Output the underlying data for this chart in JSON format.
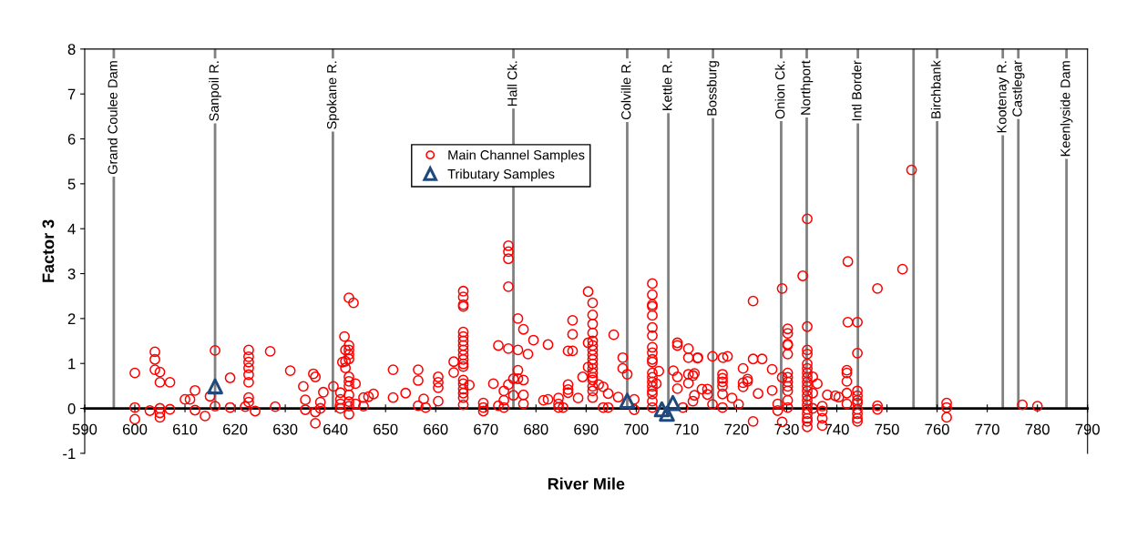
{
  "chart_data": {
    "type": "scatter",
    "xlabel": "River Mile",
    "ylabel": "Factor 3",
    "xlim": [
      590,
      790
    ],
    "xticks": [
      590,
      600,
      610,
      620,
      630,
      640,
      650,
      660,
      670,
      680,
      690,
      700,
      710,
      720,
      730,
      740,
      750,
      760,
      770,
      780,
      790
    ],
    "ylim": [
      -1,
      8
    ],
    "yticks": [
      -1,
      0,
      1,
      2,
      3,
      4,
      5,
      6,
      7,
      8
    ],
    "grid": false,
    "legend": "top",
    "series": [
      {
        "name": "Main Channel Samples",
        "color": "#ff0000",
        "marker": "circle",
        "x": [
          600,
          600,
          600,
          604,
          604,
          604,
          605,
          605,
          605,
          605,
          605,
          603,
          607,
          607,
          610,
          611,
          612,
          612,
          614,
          615,
          616,
          616,
          619,
          619,
          622,
          622.7,
          622.7,
          622.7,
          622.7,
          622.7,
          622.7,
          622.7,
          622.7,
          624,
          627,
          628,
          631,
          633.6,
          634,
          634,
          635.6,
          636,
          636,
          636,
          637.6,
          637,
          637,
          639.6,
          641.8,
          642.7,
          643.6,
          642,
          642,
          642.7,
          642.7,
          642.7,
          642.7,
          641.4,
          642.7,
          642.7,
          642.7,
          642,
          641,
          641,
          641,
          641,
          642.7,
          642.7,
          642.7,
          642.7,
          644,
          644,
          645.6,
          646.6,
          647.6,
          645.6,
          651.5,
          651.5,
          656.5,
          656.5,
          654,
          656.5,
          657.6,
          660.5,
          660.5,
          660.5,
          660.5,
          658,
          663.6,
          663.6,
          665.5,
          665.5,
          665.5,
          665.5,
          665.5,
          665.5,
          665.5,
          665.5,
          665.5,
          665.5,
          665.5,
          665.5,
          665.5,
          665.5,
          665.5,
          665.5,
          665.5,
          665.5,
          665.5,
          666.7,
          669.5,
          669.5,
          669.5,
          671.5,
          672.5,
          672.5,
          673.6,
          673.6,
          673.6,
          674.5,
          674.5,
          674.5,
          674.5,
          674.5,
          674.5,
          675.5,
          675.5,
          676.4,
          676.4,
          676.4,
          676.4,
          677.5,
          677.5,
          677.5,
          677.5,
          678.4,
          679.5,
          681.5,
          682.4,
          682.4,
          684.5,
          684.5,
          684.5,
          685.4,
          686.4,
          686.4,
          686.4,
          686.4,
          687.3,
          687.3,
          687.3,
          688.4,
          689.3,
          690.4,
          690.4,
          690.4,
          691.3,
          691.3,
          691.3,
          691.3,
          691.3,
          691.3,
          691.3,
          691.3,
          691.3,
          691.3,
          691.3,
          691.3,
          691.3,
          691.3,
          691.3,
          691.3,
          691.3,
          692.5,
          693.4,
          694.4,
          693.4,
          694.4,
          695.5,
          697.3,
          697.3,
          698.2,
          696.4,
          699.6,
          699.6,
          703.2,
          703.2,
          703.2,
          703.2,
          703.2,
          703.2,
          703.2,
          703.2,
          703.2,
          703.2,
          703.2,
          703.2,
          703.2,
          703.2,
          703.2,
          703.2,
          703.2,
          703.2,
          703.2,
          704.5,
          704,
          708.2,
          708.2,
          710.4,
          710.4,
          710.4,
          708.2,
          708.2,
          712.2,
          707.4,
          711.3,
          710.4,
          711.3,
          709.3,
          712.3,
          715.2,
          717.3,
          718.2,
          711.6,
          711.6,
          713.1,
          714.2,
          714.2,
          715.2,
          717.2,
          717.2,
          717.2,
          717.2,
          717.2,
          717.2,
          719.1,
          720.4,
          721.3,
          721.3,
          721.3,
          722.2,
          722.2,
          723.3,
          723.3,
          725.1,
          723.3,
          724.3,
          727.1,
          727.1,
          729.1,
          729.1,
          729.1,
          730.2,
          730.2,
          730.2,
          730.2,
          730.2,
          730.2,
          730.2,
          730.2,
          730.2,
          730.2,
          730.2,
          730.2,
          728.2,
          728.2,
          733.2,
          734.1,
          734.1,
          734.1,
          734.1,
          734.1,
          734.1,
          734.1,
          734.1,
          734.1,
          734.1,
          734.1,
          734.1,
          734.1,
          734.1,
          734.1,
          734.1,
          734.1,
          734.1,
          734.1,
          735.2,
          736.1,
          735.2,
          735.2,
          737.1,
          737.1,
          737.1,
          737.1,
          738.1,
          739.7,
          740.4,
          742.2,
          742,
          742,
          742,
          742,
          742,
          742.2,
          744.1,
          744.1,
          744.1,
          744.1,
          744.1,
          744.1,
          744.1,
          744.1,
          744.1,
          744.1,
          748.1,
          748.1,
          748.1,
          753.1,
          754.9,
          761.9,
          761.9,
          761.9,
          777,
          780
        ],
        "values": [
          0.79,
          0.02,
          -0.24,
          1.26,
          1.09,
          0.86,
          0.81,
          0.58,
          0,
          -0.1,
          -0.2,
          -0.05,
          0.58,
          -0.02,
          0.2,
          0.2,
          0.4,
          -0.04,
          -0.17,
          0.27,
          1.29,
          0.05,
          0.68,
          0.02,
          0.04,
          1.3,
          1.15,
          1.03,
          0.9,
          0.75,
          0.58,
          0.24,
          0.14,
          -0.06,
          1.27,
          0.04,
          0.84,
          0.49,
          0.19,
          -0.03,
          0.77,
          0.7,
          -0.08,
          -0.33,
          0.36,
          0.14,
          0,
          0.49,
          1.6,
          2.46,
          2.35,
          1.3,
          1.05,
          1.4,
          1.3,
          1.2,
          1.1,
          1.03,
          0.7,
          0.6,
          0.5,
          0.9,
          0.35,
          0.2,
          0.1,
          0,
          0.3,
          0.15,
          0.05,
          -0.13,
          0.55,
          0.1,
          0.24,
          0.26,
          0.32,
          0.05,
          0.86,
          0.24,
          0.86,
          0.62,
          0.34,
          0.06,
          0.21,
          0.7,
          0.58,
          0.46,
          0.16,
          0.02,
          1.04,
          0.8,
          2.61,
          2.48,
          2.31,
          2.27,
          1.7,
          1.6,
          1.5,
          1.4,
          1.3,
          1.19,
          1.09,
          0.99,
          0.93,
          0.63,
          0.55,
          0.43,
          0.34,
          0.24,
          0.08,
          0.52,
          0.12,
          0.02,
          -0.06,
          0.55,
          1.4,
          0.06,
          0.39,
          0.18,
          0.02,
          3.62,
          3.49,
          3.33,
          2.71,
          1.33,
          0.53,
          0.66,
          0.29,
          2.0,
          1.3,
          0.85,
          0.66,
          1.76,
          0.63,
          0.3,
          0.1,
          1.21,
          1.52,
          0.18,
          1.42,
          0.2,
          0.23,
          0.1,
          0.02,
          0.02,
          0.53,
          0.42,
          0.35,
          1.28,
          1.28,
          1.65,
          1.96,
          0.23,
          0.7,
          2.6,
          1.46,
          0.92,
          2.35,
          2.08,
          1.88,
          1.68,
          1.5,
          1.4,
          1.3,
          1.19,
          1.09,
          0.99,
          0.89,
          0.79,
          0.69,
          0.63,
          0.49,
          0.39,
          0.24,
          0.53,
          0.48,
          0.33,
          0.02,
          0.02,
          1.64,
          1.13,
          0.89,
          0.76,
          0.25,
          0.2,
          -0.03,
          2.78,
          2.53,
          2.31,
          2.27,
          2.07,
          1.8,
          1.62,
          1.36,
          1.24,
          1.09,
          1.03,
          0.79,
          0.69,
          0.59,
          0.49,
          0.39,
          0.32,
          0.16,
          0.02,
          0.83,
          0.55,
          1.46,
          1.4,
          1.33,
          1.13,
          0.76,
          0.7,
          0.44,
          1.12,
          0.84,
          0.73,
          0.56,
          0.16,
          0.02,
          1.13,
          1.16,
          1.13,
          1.16,
          0.78,
          0.29,
          0.43,
          0.43,
          0.31,
          0.09,
          0.76,
          0.67,
          0.59,
          0.49,
          0.32,
          0.02,
          0.23,
          0.09,
          0.89,
          0.57,
          0.48,
          0.65,
          0.6,
          2.39,
          1.1,
          1.1,
          -0.29,
          0.33,
          0.87,
          0.4,
          2.67,
          0.69,
          -0.3,
          1.77,
          1.67,
          1.43,
          1.41,
          1.21,
          0.79,
          0.69,
          0.59,
          0.49,
          0.39,
          0.18,
          0.02,
          0.1,
          -0.05,
          2.95,
          4.22,
          1.82,
          1.3,
          1.21,
          0.99,
          0.89,
          0.79,
          0.69,
          0.59,
          0.49,
          0.39,
          0.28,
          0.18,
          0.08,
          -0.02,
          -0.12,
          -0.22,
          -0.29,
          -0.41,
          0.7,
          0.55,
          0.34,
          0,
          0.05,
          -0.06,
          -0.22,
          -0.38,
          0.3,
          0.28,
          0.25,
          3.27,
          0.79,
          0.85,
          0.6,
          0.34,
          0.1,
          1.92,
          1.92,
          1.23,
          0.39,
          0.28,
          0.18,
          0.12,
          -0.02,
          -0.12,
          -0.22,
          -0.29,
          2.67,
          0.06,
          -0.02,
          3.1,
          5.31,
          0.12,
          0.02,
          -0.2,
          0.08,
          0.05
        ]
      },
      {
        "name": "Tributary Samples",
        "color": "#1f497d",
        "marker": "triangle",
        "x": [
          616,
          698.2,
          705.1,
          706.1,
          707.3
        ],
        "values": [
          0.49,
          0.17,
          -0.02,
          -0.12,
          0.12
        ]
      }
    ],
    "ref_lines": [
      {
        "axis": "x",
        "value": 595.8,
        "label": "Grand Coulee Dam"
      },
      {
        "axis": "x",
        "value": 616,
        "label": "Sanpoil R."
      },
      {
        "axis": "x",
        "value": 639.5,
        "label": "Spokane R."
      },
      {
        "axis": "x",
        "value": 675.5,
        "label": "Hall Ck."
      },
      {
        "axis": "x",
        "value": 698.2,
        "label": "Colville R."
      },
      {
        "axis": "x",
        "value": 706.4,
        "label": "Kettle R."
      },
      {
        "axis": "x",
        "value": 715.3,
        "label": "Bossburg"
      },
      {
        "axis": "x",
        "value": 728.9,
        "label": "Onion Ck."
      },
      {
        "axis": "x",
        "value": 734,
        "label": "Northport"
      },
      {
        "axis": "x",
        "value": 744.2,
        "label": "Intl Border"
      },
      {
        "axis": "x",
        "value": 755.3,
        "label": null
      },
      {
        "axis": "x",
        "value": 760,
        "label": "Birchbank"
      },
      {
        "axis": "x",
        "value": 773.1,
        "label": "Kootenay R."
      },
      {
        "axis": "x",
        "value": 776.2,
        "label": "Castlegar"
      },
      {
        "axis": "x",
        "value": 785.8,
        "label": "Keenlyside Dam"
      }
    ]
  }
}
